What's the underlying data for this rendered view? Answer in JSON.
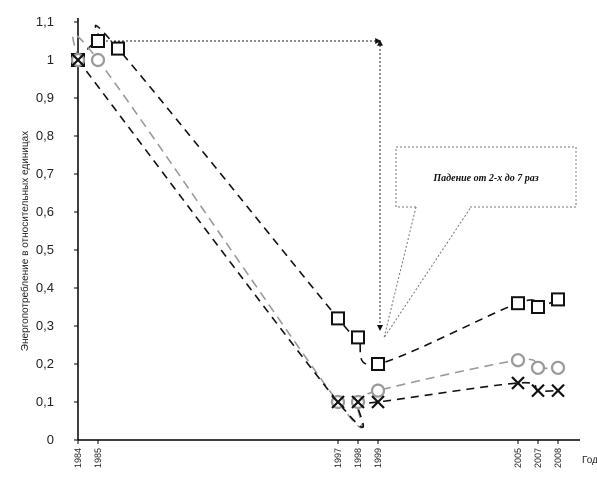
{
  "chart_data": {
    "type": "line",
    "xlabel": "Годы",
    "ylabel": "Энергопотребление в относительных единицах",
    "x_ticks": [
      "1984",
      "1985",
      "1997",
      "1998",
      "1999",
      "2005",
      "2007",
      "2008"
    ],
    "y_ticks": [
      "0",
      "0,1",
      "0,2",
      "0,3",
      "0,4",
      "0,5",
      "0,6",
      "0,7",
      "0,8",
      "0,9",
      "1",
      "1,1"
    ],
    "ylim": [
      0,
      1.1
    ],
    "grid": false,
    "annotation": "Падение от 2-х до 7 раз",
    "series": [
      {
        "marker": "square",
        "color": "#111111",
        "points": [
          [
            1984,
            1.0
          ],
          [
            1985,
            1.05
          ],
          [
            1986,
            1.03
          ],
          [
            1997,
            0.32
          ],
          [
            1998,
            0.27
          ],
          [
            1999,
            0.2
          ],
          [
            2006,
            0.36
          ],
          [
            2007,
            0.35
          ],
          [
            2008,
            0.37
          ]
        ]
      },
      {
        "marker": "circle",
        "color": "#9a9a9a",
        "points": [
          [
            1984,
            1.0
          ],
          [
            1985,
            1.0
          ],
          [
            1997,
            0.1
          ],
          [
            1998,
            0.1
          ],
          [
            1999,
            0.13
          ],
          [
            2006,
            0.21
          ],
          [
            2007,
            0.19
          ],
          [
            2008,
            0.19
          ]
        ]
      },
      {
        "marker": "cross",
        "color": "#111111",
        "points": [
          [
            1984,
            1.0
          ],
          [
            1997,
            0.1
          ],
          [
            1998,
            0.1
          ],
          [
            1999,
            0.1
          ],
          [
            2006,
            0.15
          ],
          [
            2007,
            0.13
          ],
          [
            2008,
            0.13
          ]
        ]
      }
    ]
  }
}
